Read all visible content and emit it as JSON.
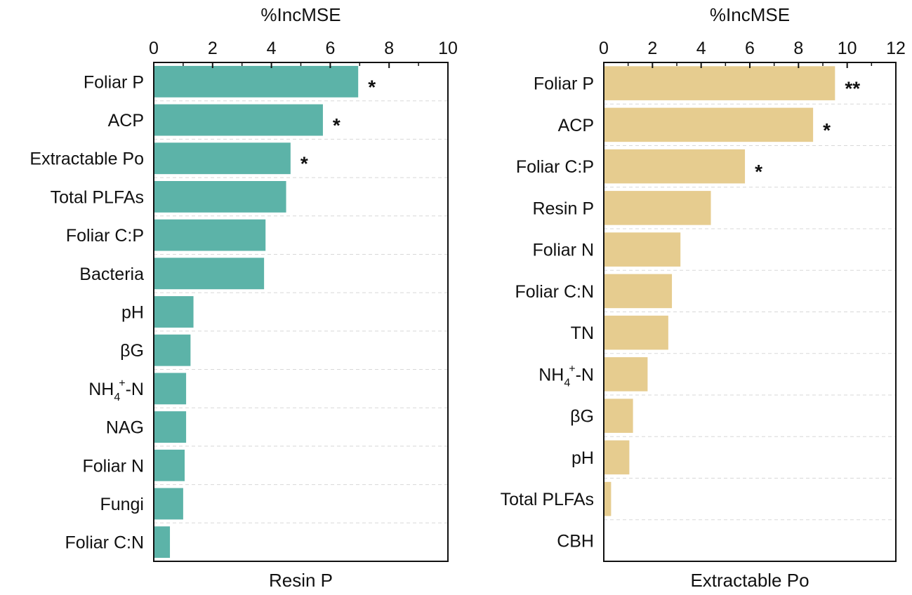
{
  "chart_data": [
    {
      "type": "bar",
      "orientation": "horizontal",
      "title": "Resin P",
      "xlabel": "%IncMSE",
      "ylabel": "",
      "xlim": [
        0,
        10
      ],
      "xticks": [
        0,
        2,
        4,
        6,
        8,
        10
      ],
      "bar_color": "#5cb3a8",
      "grid": true,
      "categories": [
        "Foliar P",
        "ACP",
        "Extractable Po",
        "Total PLFAs",
        "Foliar C:P",
        "Bacteria",
        "pH",
        "βG",
        "NH4+-N",
        "NAG",
        "Foliar N",
        "Fungi",
        "Foliar C:N"
      ],
      "category_rich": [
        null,
        null,
        null,
        null,
        null,
        null,
        null,
        null,
        {
          "base": "NH",
          "sub": "4",
          "sup": "+",
          "tail": "-N"
        },
        null,
        null,
        null,
        null
      ],
      "values": [
        6.95,
        5.75,
        4.65,
        4.5,
        3.8,
        3.75,
        1.35,
        1.25,
        1.1,
        1.1,
        1.05,
        1.0,
        0.55
      ],
      "significance": [
        "*",
        "*",
        "*",
        "",
        "",
        "",
        "",
        "",
        "",
        "",
        "",
        "",
        ""
      ]
    },
    {
      "type": "bar",
      "orientation": "horizontal",
      "title": "Extractable Po",
      "xlabel": "%IncMSE",
      "ylabel": "",
      "xlim": [
        0,
        12
      ],
      "xticks": [
        0,
        2,
        4,
        6,
        8,
        10,
        12
      ],
      "bar_color": "#e6cc8f",
      "grid": true,
      "categories": [
        "Foliar P",
        "ACP",
        "Foliar C:P",
        "Resin P",
        "Foliar N",
        "Foliar C:N",
        "TN",
        "NH4+-N",
        "βG",
        "pH",
        "Total PLFAs",
        "CBH"
      ],
      "category_rich": [
        null,
        null,
        null,
        null,
        null,
        null,
        null,
        {
          "base": "NH",
          "sub": "4",
          "sup": "+",
          "tail": "-N"
        },
        null,
        null,
        null,
        null
      ],
      "values": [
        9.5,
        8.6,
        5.8,
        4.4,
        3.15,
        2.8,
        2.65,
        1.8,
        1.2,
        1.05,
        0.3,
        0
      ],
      "significance": [
        "**",
        "*",
        "*",
        "",
        "",
        "",
        "",
        "",
        "",
        "",
        "",
        ""
      ]
    }
  ]
}
